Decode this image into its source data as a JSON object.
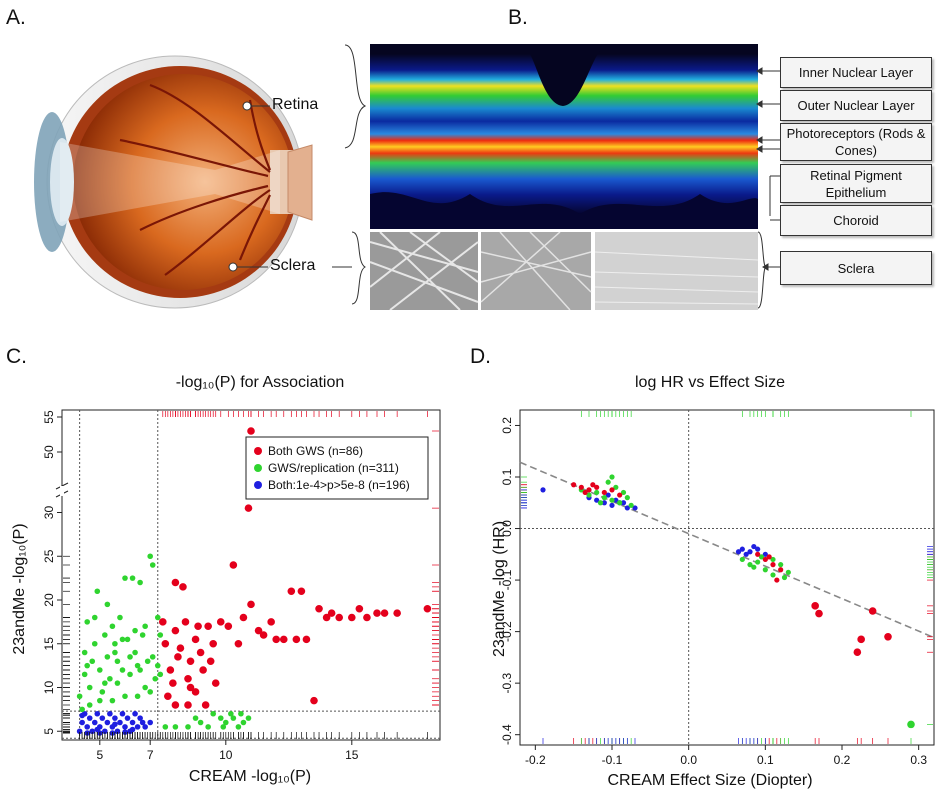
{
  "panels": {
    "a": "A.",
    "b": "B.",
    "c": "C.",
    "d": "D."
  },
  "eye": {
    "retina_label": "Retina",
    "sclera_label": "Sclera"
  },
  "layers": [
    "Inner Nuclear Layer",
    "Outer Nuclear Layer",
    "Photoreceptors (Rods & Cones)",
    "Retinal Pigment Epithelium",
    "Choroid",
    "Sclera"
  ],
  "chart_data": [
    {
      "type": "scatter",
      "title": "-log₁₀(P) for Association",
      "xlabel": "CREAM -log₁₀(P)",
      "ylabel": "23andMe -log₁₀(P)",
      "xlim": [
        3.5,
        18.5
      ],
      "ylim_lower": [
        4,
        32
      ],
      "ylim_upper": [
        45,
        56
      ],
      "x_ticks": [
        "5",
        "7",
        "10",
        "15"
      ],
      "y_ticks_lower": [
        "5",
        "10",
        "15",
        "20",
        "25",
        "30"
      ],
      "y_ticks_upper": [
        "50",
        "55"
      ],
      "legend": [
        "Both GWS (n=86)",
        "GWS/replication (n=311)",
        "Both:1e-4>p>5e-8 (n=196)"
      ],
      "legend_position": "top-right",
      "colors": [
        "#e4001c",
        "#2fd42f",
        "#1f1fe0"
      ],
      "series": [
        {
          "name": "Both GWS (n=86)",
          "points": [
            [
              7.5,
              17.5
            ],
            [
              7.6,
              15
            ],
            [
              7.8,
              12
            ],
            [
              8,
              16.5
            ],
            [
              8.2,
              14.5
            ],
            [
              8.4,
              17.5
            ],
            [
              8.5,
              11
            ],
            [
              8.6,
              13
            ],
            [
              8.8,
              15.5
            ],
            [
              8.9,
              17
            ],
            [
              9,
              14
            ],
            [
              9.1,
              12
            ],
            [
              9.3,
              17
            ],
            [
              9.5,
              15
            ],
            [
              7.7,
              9
            ],
            [
              8,
              8
            ],
            [
              8.5,
              8
            ],
            [
              8.8,
              9.5
            ],
            [
              9.2,
              8
            ],
            [
              8.3,
              21.5
            ],
            [
              8,
              22
            ],
            [
              7.9,
              10.5
            ],
            [
              8.6,
              10
            ],
            [
              9.4,
              13
            ],
            [
              9.6,
              10.5
            ],
            [
              8.1,
              13.5
            ],
            [
              10.3,
              24
            ],
            [
              10.7,
              18
            ],
            [
              10.9,
              30.5
            ],
            [
              11,
              53
            ],
            [
              11,
              19.5
            ],
            [
              11.5,
              16
            ],
            [
              11.8,
              17.5
            ],
            [
              12,
              15.5
            ],
            [
              12.3,
              15.5
            ],
            [
              12.8,
              15.5
            ],
            [
              13,
              21
            ],
            [
              13.2,
              15.5
            ],
            [
              13.5,
              8.5
            ],
            [
              13.7,
              19
            ],
            [
              14,
              18
            ],
            [
              14.2,
              18.5
            ],
            [
              14.5,
              18
            ],
            [
              15,
              18
            ],
            [
              15.3,
              19
            ],
            [
              15.6,
              18
            ],
            [
              16,
              18.5
            ],
            [
              16.3,
              18.5
            ],
            [
              16.8,
              18.5
            ],
            [
              18,
              19
            ],
            [
              10.5,
              15
            ],
            [
              11.3,
              16.5
            ],
            [
              12.6,
              21
            ],
            [
              9.8,
              17.5
            ],
            [
              10.1,
              17
            ]
          ]
        },
        {
          "name": "GWS/replication (n=311)",
          "points": [
            [
              4.2,
              9
            ],
            [
              4.4,
              14
            ],
            [
              4.5,
              17.5
            ],
            [
              4.6,
              10
            ],
            [
              4.7,
              13
            ],
            [
              4.8,
              15
            ],
            [
              4.9,
              21
            ],
            [
              5,
              12
            ],
            [
              5.1,
              9.5
            ],
            [
              5.2,
              16
            ],
            [
              5.3,
              13.5
            ],
            [
              5.4,
              11
            ],
            [
              5.5,
              17
            ],
            [
              5.6,
              14
            ],
            [
              5.7,
              10.5
            ],
            [
              5.8,
              18
            ],
            [
              5.9,
              12
            ],
            [
              6,
              22.5
            ],
            [
              6.1,
              15.5
            ],
            [
              6.2,
              11.5
            ],
            [
              6.3,
              22.5
            ],
            [
              6.4,
              14
            ],
            [
              6.5,
              12.5
            ],
            [
              6.6,
              22
            ],
            [
              6.7,
              16
            ],
            [
              6.8,
              10
            ],
            [
              6.9,
              13
            ],
            [
              7,
              25
            ],
            [
              7.1,
              24
            ],
            [
              7.2,
              11
            ],
            [
              7.3,
              18
            ],
            [
              7.4,
              16
            ],
            [
              4.3,
              7.5
            ],
            [
              4.6,
              8
            ],
            [
              5,
              8.5
            ],
            [
              5.5,
              8.5
            ],
            [
              6,
              9
            ],
            [
              6.5,
              9
            ],
            [
              7,
              9.5
            ],
            [
              4.4,
              11.5
            ],
            [
              5.2,
              10.5
            ],
            [
              5.7,
              13
            ],
            [
              6.2,
              13.5
            ],
            [
              6.6,
              12
            ],
            [
              7.3,
              12.5
            ],
            [
              4.8,
              18
            ],
            [
              5.3,
              19.5
            ],
            [
              5.9,
              15.5
            ],
            [
              6.4,
              16.5
            ],
            [
              7.1,
              13.5
            ],
            [
              4.5,
              12.5
            ],
            [
              5.6,
              15
            ],
            [
              6.8,
              17
            ],
            [
              7.4,
              11.5
            ],
            [
              9.5,
              7
            ],
            [
              9.8,
              6.5
            ],
            [
              10,
              6
            ],
            [
              10.3,
              6.5
            ],
            [
              10.5,
              5.5
            ],
            [
              10.7,
              6
            ],
            [
              10.9,
              6.5
            ],
            [
              10.2,
              7
            ],
            [
              9.9,
              5.5
            ],
            [
              10.6,
              7
            ],
            [
              8,
              5.5
            ],
            [
              8.5,
              5.5
            ],
            [
              9,
              6
            ],
            [
              9.3,
              5.5
            ],
            [
              7.6,
              5.5
            ],
            [
              8.8,
              6.5
            ]
          ]
        },
        {
          "name": "Both:1e-4>p>5e-8 (n=196)",
          "points": [
            [
              4.2,
              5
            ],
            [
              4.3,
              6
            ],
            [
              4.4,
              7
            ],
            [
              4.5,
              5.5
            ],
            [
              4.6,
              6.5
            ],
            [
              4.7,
              5
            ],
            [
              4.8,
              6
            ],
            [
              4.9,
              7
            ],
            [
              5,
              5.5
            ],
            [
              5.1,
              6.5
            ],
            [
              5.2,
              5
            ],
            [
              5.3,
              6
            ],
            [
              5.4,
              7
            ],
            [
              5.5,
              5.5
            ],
            [
              5.6,
              6.5
            ],
            [
              5.7,
              5
            ],
            [
              5.8,
              6
            ],
            [
              5.9,
              7
            ],
            [
              6,
              5.5
            ],
            [
              6.1,
              6.5
            ],
            [
              6.2,
              5
            ],
            [
              6.3,
              6
            ],
            [
              6.4,
              7
            ],
            [
              6.5,
              5.5
            ],
            [
              6.6,
              6.5
            ],
            [
              6.8,
              5.5
            ],
            [
              7,
              6
            ],
            [
              4.5,
              4.8
            ],
            [
              5,
              4.8
            ],
            [
              5.5,
              4.8
            ],
            [
              6,
              4.9
            ],
            [
              6.7,
              6
            ],
            [
              4.3,
              6.8
            ],
            [
              4.9,
              5.2
            ],
            [
              5.6,
              5.8
            ],
            [
              6.3,
              5.2
            ]
          ]
        }
      ]
    },
    {
      "type": "scatter",
      "title": "log HR vs Effect Size",
      "xlabel": "CREAM Effect Size (Diopter)",
      "ylabel": "23andMe -log (HR)",
      "xlim": [
        -0.22,
        0.32
      ],
      "ylim": [
        -0.42,
        0.23
      ],
      "x_ticks": [
        "-0.2",
        "-0.1",
        "0.0",
        "0.1",
        "0.2",
        "0.3"
      ],
      "y_ticks": [
        "0.2",
        "0.1",
        "0.0",
        "-0.1",
        "-0.2",
        "-0.3",
        "-0.4"
      ],
      "grid": false,
      "colors": [
        "#e4001c",
        "#2fd42f",
        "#1f1fe0"
      ],
      "series": [
        {
          "points": [
            [
              -0.15,
              0.085
            ],
            [
              -0.14,
              0.08
            ],
            [
              -0.13,
              0.075
            ],
            [
              -0.12,
              0.08
            ],
            [
              -0.11,
              0.07
            ],
            [
              -0.1,
              0.075
            ],
            [
              -0.09,
              0.065
            ],
            [
              -0.135,
              0.07
            ],
            [
              -0.125,
              0.085
            ],
            [
              0.09,
              -0.05
            ],
            [
              0.1,
              -0.06
            ],
            [
              0.11,
              -0.07
            ],
            [
              0.12,
              -0.08
            ],
            [
              0.115,
              -0.1
            ],
            [
              0.105,
              -0.055
            ],
            [
              0.165,
              -0.15
            ],
            [
              0.17,
              -0.165
            ],
            [
              0.22,
              -0.24
            ],
            [
              0.225,
              -0.215
            ],
            [
              0.24,
              -0.16
            ],
            [
              0.26,
              -0.21
            ]
          ]
        },
        {
          "points": [
            [
              -0.14,
              0.075
            ],
            [
              -0.13,
              0.065
            ],
            [
              -0.12,
              0.07
            ],
            [
              -0.11,
              0.06
            ],
            [
              -0.1,
              0.055
            ],
            [
              -0.09,
              0.05
            ],
            [
              -0.08,
              0.06
            ],
            [
              -0.105,
              0.09
            ],
            [
              -0.095,
              0.08
            ],
            [
              -0.115,
              0.05
            ],
            [
              -0.085,
              0.07
            ],
            [
              -0.075,
              0.045
            ],
            [
              -0.1,
              0.1
            ],
            [
              0.07,
              -0.06
            ],
            [
              0.08,
              -0.07
            ],
            [
              0.09,
              -0.065
            ],
            [
              0.1,
              -0.08
            ],
            [
              0.11,
              -0.09
            ],
            [
              0.12,
              -0.07
            ],
            [
              0.13,
              -0.085
            ],
            [
              0.095,
              -0.055
            ],
            [
              0.085,
              -0.075
            ],
            [
              0.125,
              -0.095
            ],
            [
              0.11,
              -0.06
            ],
            [
              0.29,
              -0.38
            ]
          ]
        },
        {
          "points": [
            [
              -0.19,
              0.075
            ],
            [
              -0.13,
              0.06
            ],
            [
              -0.12,
              0.055
            ],
            [
              -0.11,
              0.05
            ],
            [
              -0.1,
              0.045
            ],
            [
              -0.09,
              0.05
            ],
            [
              -0.08,
              0.04
            ],
            [
              -0.07,
              0.04
            ],
            [
              -0.105,
              0.065
            ],
            [
              -0.095,
              0.055
            ],
            [
              -0.085,
              0.05
            ],
            [
              0.07,
              -0.04
            ],
            [
              0.08,
              -0.045
            ],
            [
              0.09,
              -0.04
            ],
            [
              0.1,
              -0.05
            ],
            [
              0.075,
              -0.05
            ],
            [
              0.085,
              -0.035
            ],
            [
              0.065,
              -0.045
            ]
          ]
        }
      ]
    }
  ]
}
